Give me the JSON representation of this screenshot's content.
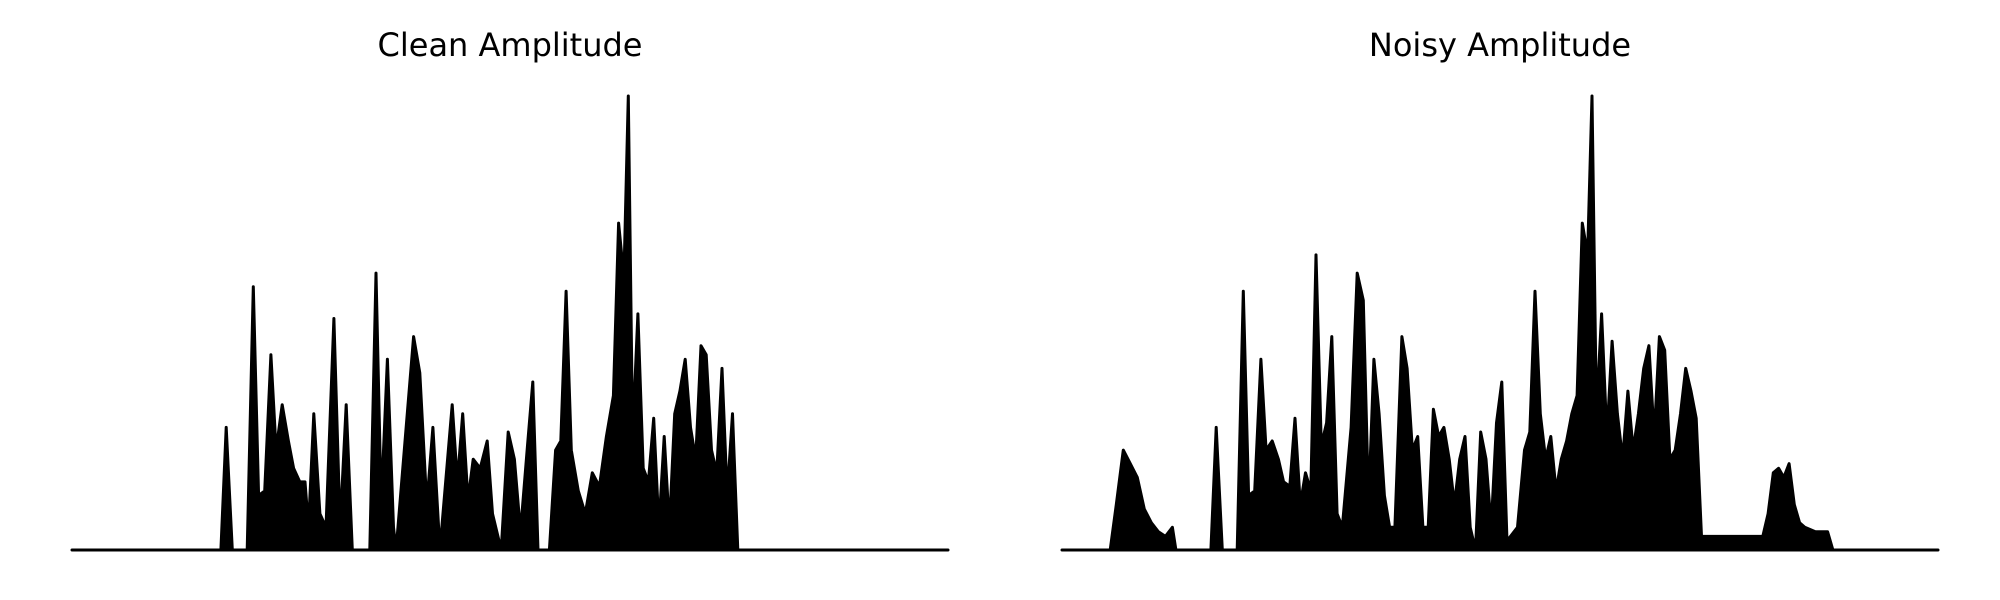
{
  "chart_data": [
    {
      "type": "area",
      "title": "Clean Amplitude",
      "xlabel": "",
      "ylabel": "",
      "axes_visible": false,
      "grid": false,
      "color": "#000000",
      "ylim": [
        0,
        1
      ],
      "points": [
        [
          0,
          0
        ],
        [
          0.17,
          0
        ],
        [
          0.176,
          0.27
        ],
        [
          0.183,
          0
        ],
        [
          0.2,
          0
        ],
        [
          0.207,
          0.58
        ],
        [
          0.213,
          0.12
        ],
        [
          0.22,
          0.13
        ],
        [
          0.227,
          0.43
        ],
        [
          0.233,
          0.22
        ],
        [
          0.24,
          0.32
        ],
        [
          0.247,
          0.24
        ],
        [
          0.253,
          0.18
        ],
        [
          0.26,
          0.15
        ],
        [
          0.266,
          0.15
        ],
        [
          0.27,
          0.05
        ],
        [
          0.276,
          0.3
        ],
        [
          0.283,
          0.08
        ],
        [
          0.29,
          0.05
        ],
        [
          0.299,
          0.51
        ],
        [
          0.306,
          0.05
        ],
        [
          0.313,
          0.32
        ],
        [
          0.32,
          0
        ],
        [
          0.34,
          0
        ],
        [
          0.347,
          0.61
        ],
        [
          0.353,
          0.1
        ],
        [
          0.36,
          0.42
        ],
        [
          0.367,
          0.05
        ],
        [
          0.37,
          0
        ],
        [
          0.39,
          0.47
        ],
        [
          0.397,
          0.39
        ],
        [
          0.405,
          0.1
        ],
        [
          0.412,
          0.27
        ],
        [
          0.42,
          0
        ],
        [
          0.434,
          0.32
        ],
        [
          0.44,
          0.15
        ],
        [
          0.446,
          0.3
        ],
        [
          0.452,
          0.11
        ],
        [
          0.458,
          0.2
        ],
        [
          0.466,
          0.18
        ],
        [
          0.474,
          0.24
        ],
        [
          0.48,
          0.08
        ],
        [
          0.49,
          0
        ],
        [
          0.498,
          0.26
        ],
        [
          0.505,
          0.2
        ],
        [
          0.512,
          0.04
        ],
        [
          0.52,
          0.23
        ],
        [
          0.526,
          0.37
        ],
        [
          0.532,
          0
        ],
        [
          0.545,
          0
        ],
        [
          0.552,
          0.22
        ],
        [
          0.558,
          0.24
        ],
        [
          0.564,
          0.57
        ],
        [
          0.57,
          0.22
        ],
        [
          0.578,
          0.13
        ],
        [
          0.586,
          0.08
        ],
        [
          0.594,
          0.17
        ],
        [
          0.602,
          0.14
        ],
        [
          0.61,
          0.25
        ],
        [
          0.618,
          0.34
        ],
        [
          0.624,
          0.72
        ],
        [
          0.63,
          0.6
        ],
        [
          0.635,
          1.0
        ],
        [
          0.64,
          0.25
        ],
        [
          0.646,
          0.52
        ],
        [
          0.652,
          0.18
        ],
        [
          0.658,
          0.15
        ],
        [
          0.664,
          0.29
        ],
        [
          0.67,
          0.05
        ],
        [
          0.676,
          0.25
        ],
        [
          0.682,
          0.05
        ],
        [
          0.688,
          0.3
        ],
        [
          0.694,
          0.35
        ],
        [
          0.7,
          0.42
        ],
        [
          0.706,
          0.27
        ],
        [
          0.712,
          0.2
        ],
        [
          0.718,
          0.45
        ],
        [
          0.724,
          0.43
        ],
        [
          0.73,
          0.22
        ],
        [
          0.736,
          0.17
        ],
        [
          0.742,
          0.4
        ],
        [
          0.748,
          0.12
        ],
        [
          0.754,
          0.3
        ],
        [
          0.76,
          0
        ],
        [
          1,
          0
        ]
      ]
    },
    {
      "type": "area",
      "title": "Noisy Amplitude",
      "xlabel": "",
      "ylabel": "",
      "axes_visible": false,
      "grid": false,
      "color": "#000000",
      "ylim": [
        0,
        1
      ],
      "points": [
        [
          0,
          0
        ],
        [
          0.055,
          0
        ],
        [
          0.062,
          0.1
        ],
        [
          0.07,
          0.22
        ],
        [
          0.078,
          0.19
        ],
        [
          0.086,
          0.16
        ],
        [
          0.094,
          0.09
        ],
        [
          0.102,
          0.06
        ],
        [
          0.11,
          0.04
        ],
        [
          0.118,
          0.03
        ],
        [
          0.126,
          0.05
        ],
        [
          0.13,
          0
        ],
        [
          0.17,
          0
        ],
        [
          0.176,
          0.27
        ],
        [
          0.183,
          0
        ],
        [
          0.2,
          0
        ],
        [
          0.207,
          0.57
        ],
        [
          0.213,
          0.12
        ],
        [
          0.22,
          0.13
        ],
        [
          0.227,
          0.42
        ],
        [
          0.233,
          0.22
        ],
        [
          0.24,
          0.24
        ],
        [
          0.247,
          0.2
        ],
        [
          0.253,
          0.15
        ],
        [
          0.26,
          0.14
        ],
        [
          0.266,
          0.29
        ],
        [
          0.272,
          0.1
        ],
        [
          0.278,
          0.17
        ],
        [
          0.284,
          0.13
        ],
        [
          0.29,
          0.65
        ],
        [
          0.296,
          0.23
        ],
        [
          0.302,
          0.28
        ],
        [
          0.308,
          0.47
        ],
        [
          0.314,
          0.08
        ],
        [
          0.32,
          0.05
        ],
        [
          0.33,
          0.27
        ],
        [
          0.337,
          0.61
        ],
        [
          0.344,
          0.55
        ],
        [
          0.35,
          0.1
        ],
        [
          0.356,
          0.42
        ],
        [
          0.362,
          0.3
        ],
        [
          0.368,
          0.12
        ],
        [
          0.374,
          0.05
        ],
        [
          0.38,
          0.05
        ],
        [
          0.388,
          0.47
        ],
        [
          0.394,
          0.4
        ],
        [
          0.4,
          0.22
        ],
        [
          0.406,
          0.25
        ],
        [
          0.412,
          0.05
        ],
        [
          0.418,
          0.05
        ],
        [
          0.424,
          0.31
        ],
        [
          0.43,
          0.25
        ],
        [
          0.436,
          0.27
        ],
        [
          0.442,
          0.2
        ],
        [
          0.448,
          0.1
        ],
        [
          0.454,
          0.2
        ],
        [
          0.46,
          0.25
        ],
        [
          0.466,
          0.05
        ],
        [
          0.472,
          0
        ],
        [
          0.478,
          0.26
        ],
        [
          0.484,
          0.2
        ],
        [
          0.49,
          0.05
        ],
        [
          0.496,
          0.28
        ],
        [
          0.502,
          0.37
        ],
        [
          0.508,
          0.02
        ],
        [
          0.52,
          0.05
        ],
        [
          0.528,
          0.22
        ],
        [
          0.534,
          0.26
        ],
        [
          0.54,
          0.57
        ],
        [
          0.546,
          0.3
        ],
        [
          0.552,
          0.2
        ],
        [
          0.558,
          0.25
        ],
        [
          0.564,
          0.13
        ],
        [
          0.57,
          0.2
        ],
        [
          0.576,
          0.24
        ],
        [
          0.582,
          0.3
        ],
        [
          0.588,
          0.34
        ],
        [
          0.594,
          0.72
        ],
        [
          0.6,
          0.65
        ],
        [
          0.605,
          1.0
        ],
        [
          0.61,
          0.3
        ],
        [
          0.616,
          0.52
        ],
        [
          0.622,
          0.25
        ],
        [
          0.628,
          0.46
        ],
        [
          0.634,
          0.3
        ],
        [
          0.64,
          0.2
        ],
        [
          0.646,
          0.35
        ],
        [
          0.652,
          0.22
        ],
        [
          0.658,
          0.3
        ],
        [
          0.664,
          0.4
        ],
        [
          0.67,
          0.45
        ],
        [
          0.676,
          0.25
        ],
        [
          0.682,
          0.47
        ],
        [
          0.688,
          0.44
        ],
        [
          0.694,
          0.2
        ],
        [
          0.7,
          0.22
        ],
        [
          0.706,
          0.3
        ],
        [
          0.712,
          0.4
        ],
        [
          0.718,
          0.35
        ],
        [
          0.724,
          0.29
        ],
        [
          0.73,
          0.03
        ],
        [
          0.8,
          0.03
        ],
        [
          0.806,
          0.08
        ],
        [
          0.812,
          0.17
        ],
        [
          0.818,
          0.18
        ],
        [
          0.824,
          0.16
        ],
        [
          0.83,
          0.19
        ],
        [
          0.836,
          0.1
        ],
        [
          0.842,
          0.06
        ],
        [
          0.848,
          0.05
        ],
        [
          0.86,
          0.04
        ],
        [
          0.874,
          0.04
        ],
        [
          0.88,
          0
        ],
        [
          1,
          0
        ]
      ]
    }
  ]
}
